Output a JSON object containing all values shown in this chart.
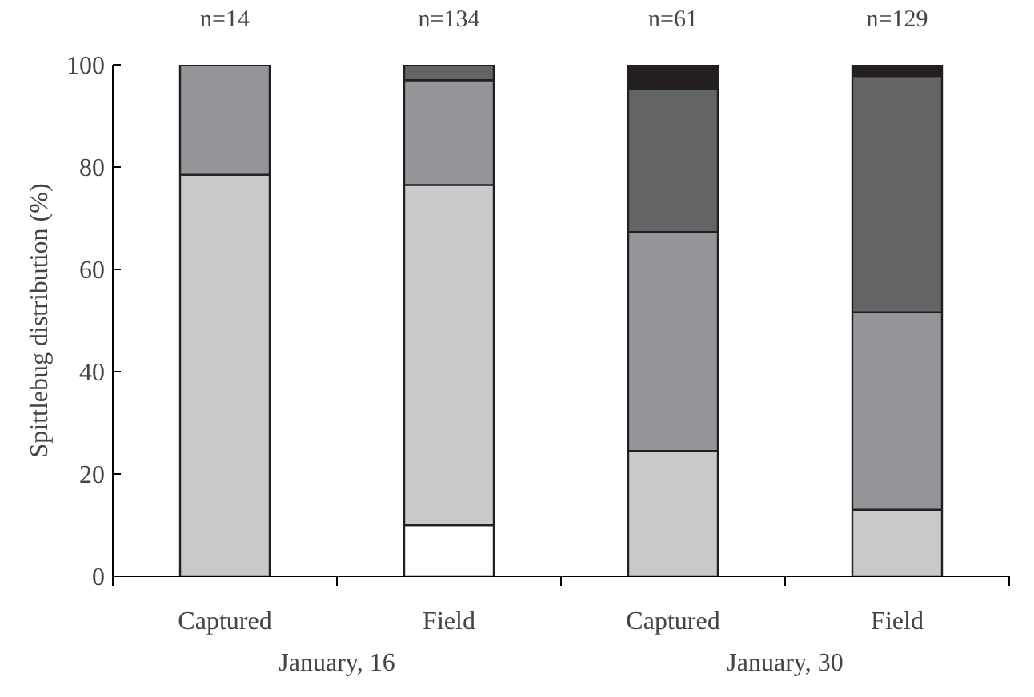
{
  "chart_data": {
    "type": "bar",
    "stacked": true,
    "ylabel": "Spittlebug distribution (%)",
    "categories": [
      "Captured",
      "Field",
      "Captured",
      "Field"
    ],
    "series": [
      {
        "color": "#ffffff",
        "values": [
          0,
          10,
          0,
          0
        ]
      },
      {
        "color": "#c8c9cb",
        "values": [
          78.5,
          66.5,
          24.5,
          13
        ]
      },
      {
        "color": "#939598",
        "values": [
          21.5,
          20.5,
          42.8,
          38.6
        ]
      },
      {
        "color": "#636466",
        "values": [
          0,
          3,
          28,
          46.2
        ]
      },
      {
        "color": "#231f20",
        "values": [
          0,
          0,
          4.7,
          2.2
        ]
      }
    ],
    "ylim": [
      0,
      100
    ],
    "yticks": [
      0,
      20,
      40,
      60,
      80,
      100
    ],
    "grid": false,
    "annotations": [
      "n=14",
      "n=134",
      "n=61",
      "n=129",
      "January, 16",
      "January, 30"
    ]
  }
}
